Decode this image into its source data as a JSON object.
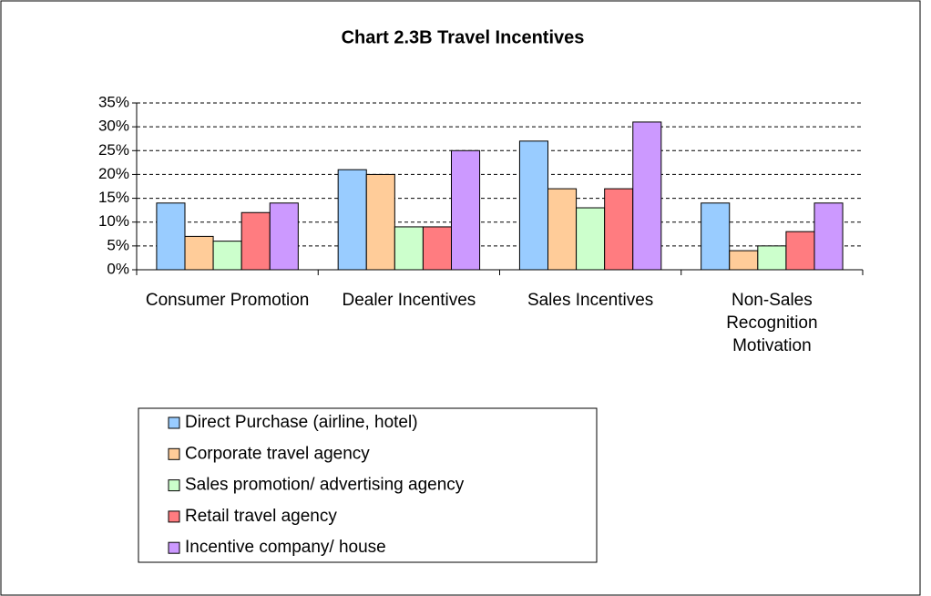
{
  "chart_data": {
    "type": "bar",
    "title": "Chart 2.3B Travel Incentives",
    "categories": [
      "Consumer Promotion",
      "Dealer Incentives",
      "Sales Incentives",
      "Non-Sales Recognition Motivation"
    ],
    "series": [
      {
        "name": "Direct Purchase (airline, hotel)",
        "color": "#99ccff",
        "values": [
          14,
          21,
          27,
          14
        ]
      },
      {
        "name": "Corporate travel agency",
        "color": "#ffcc99",
        "values": [
          7,
          20,
          17,
          4
        ]
      },
      {
        "name": "Sales promotion/ advertising agency",
        "color": "#ccffcc",
        "values": [
          6,
          9,
          13,
          5
        ]
      },
      {
        "name": "Retail travel agency",
        "color": "#ff7c80",
        "values": [
          12,
          9,
          17,
          8
        ]
      },
      {
        "name": "Incentive company/ house",
        "color": "#cc99ff",
        "values": [
          14,
          25,
          31,
          14
        ]
      }
    ],
    "ylim": [
      0,
      35
    ],
    "yticks": [
      {
        "value": 0,
        "label": "0%"
      },
      {
        "value": 5,
        "label": "5%"
      },
      {
        "value": 10,
        "label": "10%"
      },
      {
        "value": 15,
        "label": "15%"
      },
      {
        "value": 20,
        "label": "20%"
      },
      {
        "value": 25,
        "label": "25%"
      },
      {
        "value": 30,
        "label": "30%"
      },
      {
        "value": 35,
        "label": "35%"
      }
    ],
    "grid": true
  }
}
